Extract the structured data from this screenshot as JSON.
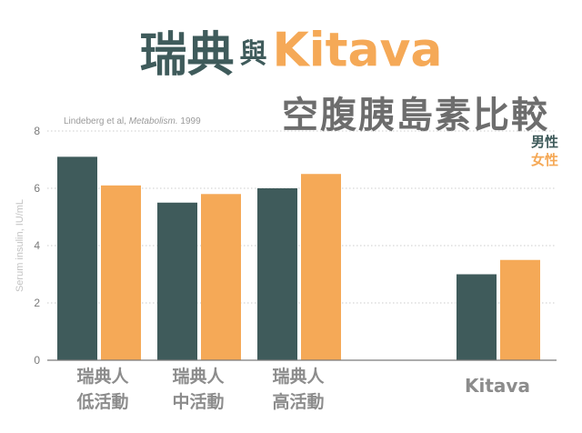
{
  "title": {
    "part1": "瑞典",
    "connector": "與",
    "part2": "Kitava",
    "subtitle": "空腹胰島素比較"
  },
  "citation": {
    "authors": "Lindeberg et al,",
    "journal": "Metabolism.",
    "year": "1999"
  },
  "legend": {
    "male": "男性",
    "female": "女性"
  },
  "colors": {
    "male": "#3f5b5b",
    "female": "#f5a957",
    "title_dark": "#3f5b5b",
    "subtitle": "#6d6d6d"
  },
  "chart_data": {
    "type": "bar",
    "ylabel": "Serum insulin, IU/mL",
    "ylim": [
      0,
      8
    ],
    "yticks": [
      "0",
      "2",
      "4",
      "6",
      "8"
    ],
    "grid": true,
    "legend_position": "top-right",
    "categories": [
      {
        "line1": "瑞典人",
        "line2": "低活動"
      },
      {
        "line1": "瑞典人",
        "line2": "中活動"
      },
      {
        "line1": "瑞典人",
        "line2": "高活動"
      },
      {
        "line1": "Kitava",
        "line2": ""
      }
    ],
    "series": [
      {
        "name": "男性",
        "values": [
          7.1,
          5.5,
          6.0,
          3.0
        ]
      },
      {
        "name": "女性",
        "values": [
          6.1,
          5.8,
          6.5,
          3.5
        ]
      }
    ]
  }
}
